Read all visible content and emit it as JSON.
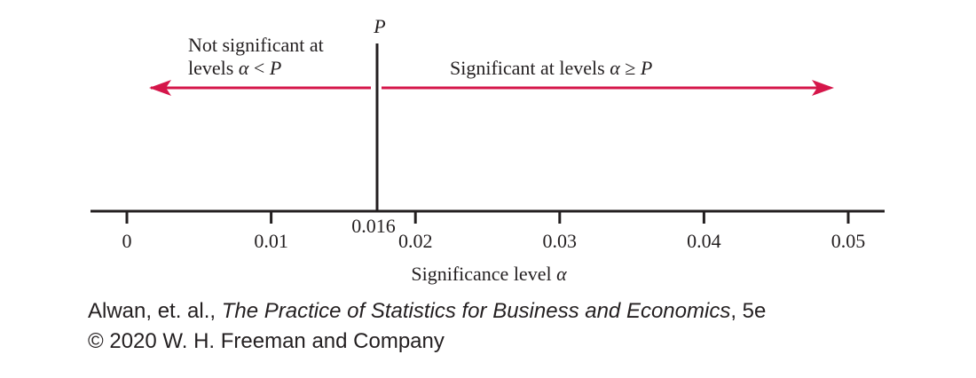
{
  "p_label": "P",
  "p_value": 0.016,
  "p_value_label": "0.016",
  "left_region": {
    "line1": "Not significant at",
    "line2_prefix": "levels ",
    "symbol": "α",
    "relation": " < ",
    "p": "P"
  },
  "right_region": {
    "prefix": "Significant at levels ",
    "symbol": "α",
    "relation": " ≥ ",
    "p": "P"
  },
  "axis": {
    "min": 0,
    "max": 0.05,
    "ticks": [
      {
        "value": 0,
        "label": "0"
      },
      {
        "value": 0.01,
        "label": "0.01"
      },
      {
        "value": 0.02,
        "label": "0.02"
      },
      {
        "value": 0.03,
        "label": "0.03"
      },
      {
        "value": 0.04,
        "label": "0.04"
      },
      {
        "value": 0.05,
        "label": "0.05"
      }
    ],
    "label_prefix": "Significance level ",
    "label_symbol": "α"
  },
  "colors": {
    "arrow": "#d5164a",
    "axis": "#231f20"
  },
  "credit": {
    "line1_prefix": "Alwan, et. al., ",
    "line1_title": "The Practice of Statistics for Business and Economics",
    "line1_suffix": ", 5e",
    "line2": "© 2020 W. H. Freeman and Company"
  }
}
